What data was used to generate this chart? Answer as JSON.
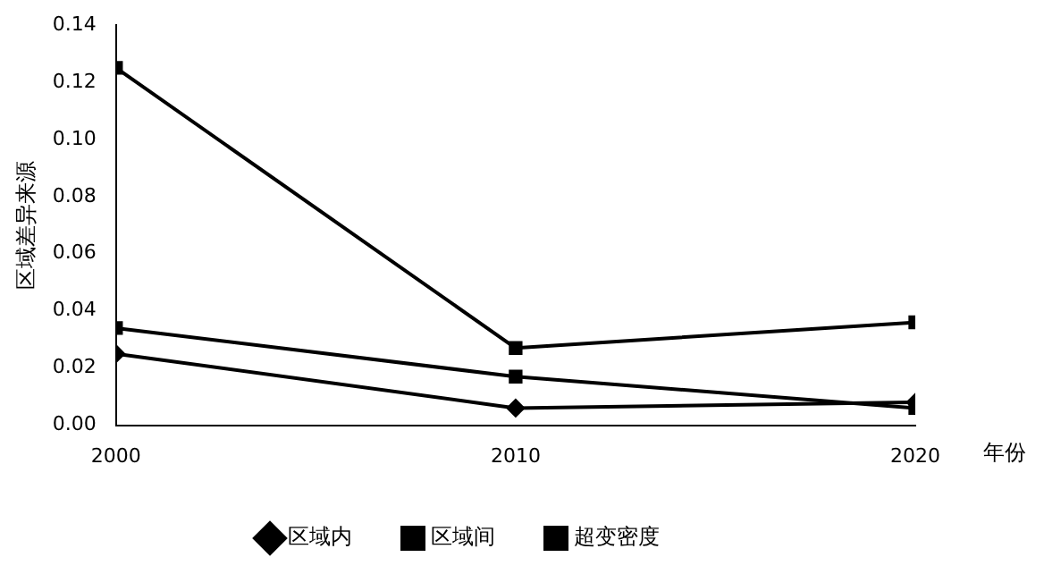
{
  "chart_data": {
    "type": "line",
    "xlabel": "年份",
    "ylabel": "区域差异来源",
    "x": [
      2000,
      2010,
      2020
    ],
    "series": [
      {
        "name": "区域内",
        "color": "#000000",
        "values": [
          0.025,
          0.006,
          0.008
        ],
        "marker": "diamond"
      },
      {
        "name": "区域间",
        "color": "#000000",
        "values": [
          0.034,
          0.017,
          0.006
        ],
        "marker": "square"
      },
      {
        "name": "超变密度",
        "color": "#000000",
        "values": [
          0.125,
          0.027,
          0.036
        ],
        "marker": "square"
      }
    ],
    "xlim": [
      2000,
      2020
    ],
    "xticks": [
      2000,
      2010,
      2020
    ],
    "ylim": [
      0,
      0.14
    ],
    "yticks": [
      {
        "value": 0,
        "label": "0.00"
      },
      0.02,
      0.04,
      0.06,
      0.08,
      {
        "value": 0.1,
        "label": "0.10"
      },
      0.12,
      0.14
    ],
    "grid": false,
    "legend": "bottom",
    "line_style": "solid"
  }
}
